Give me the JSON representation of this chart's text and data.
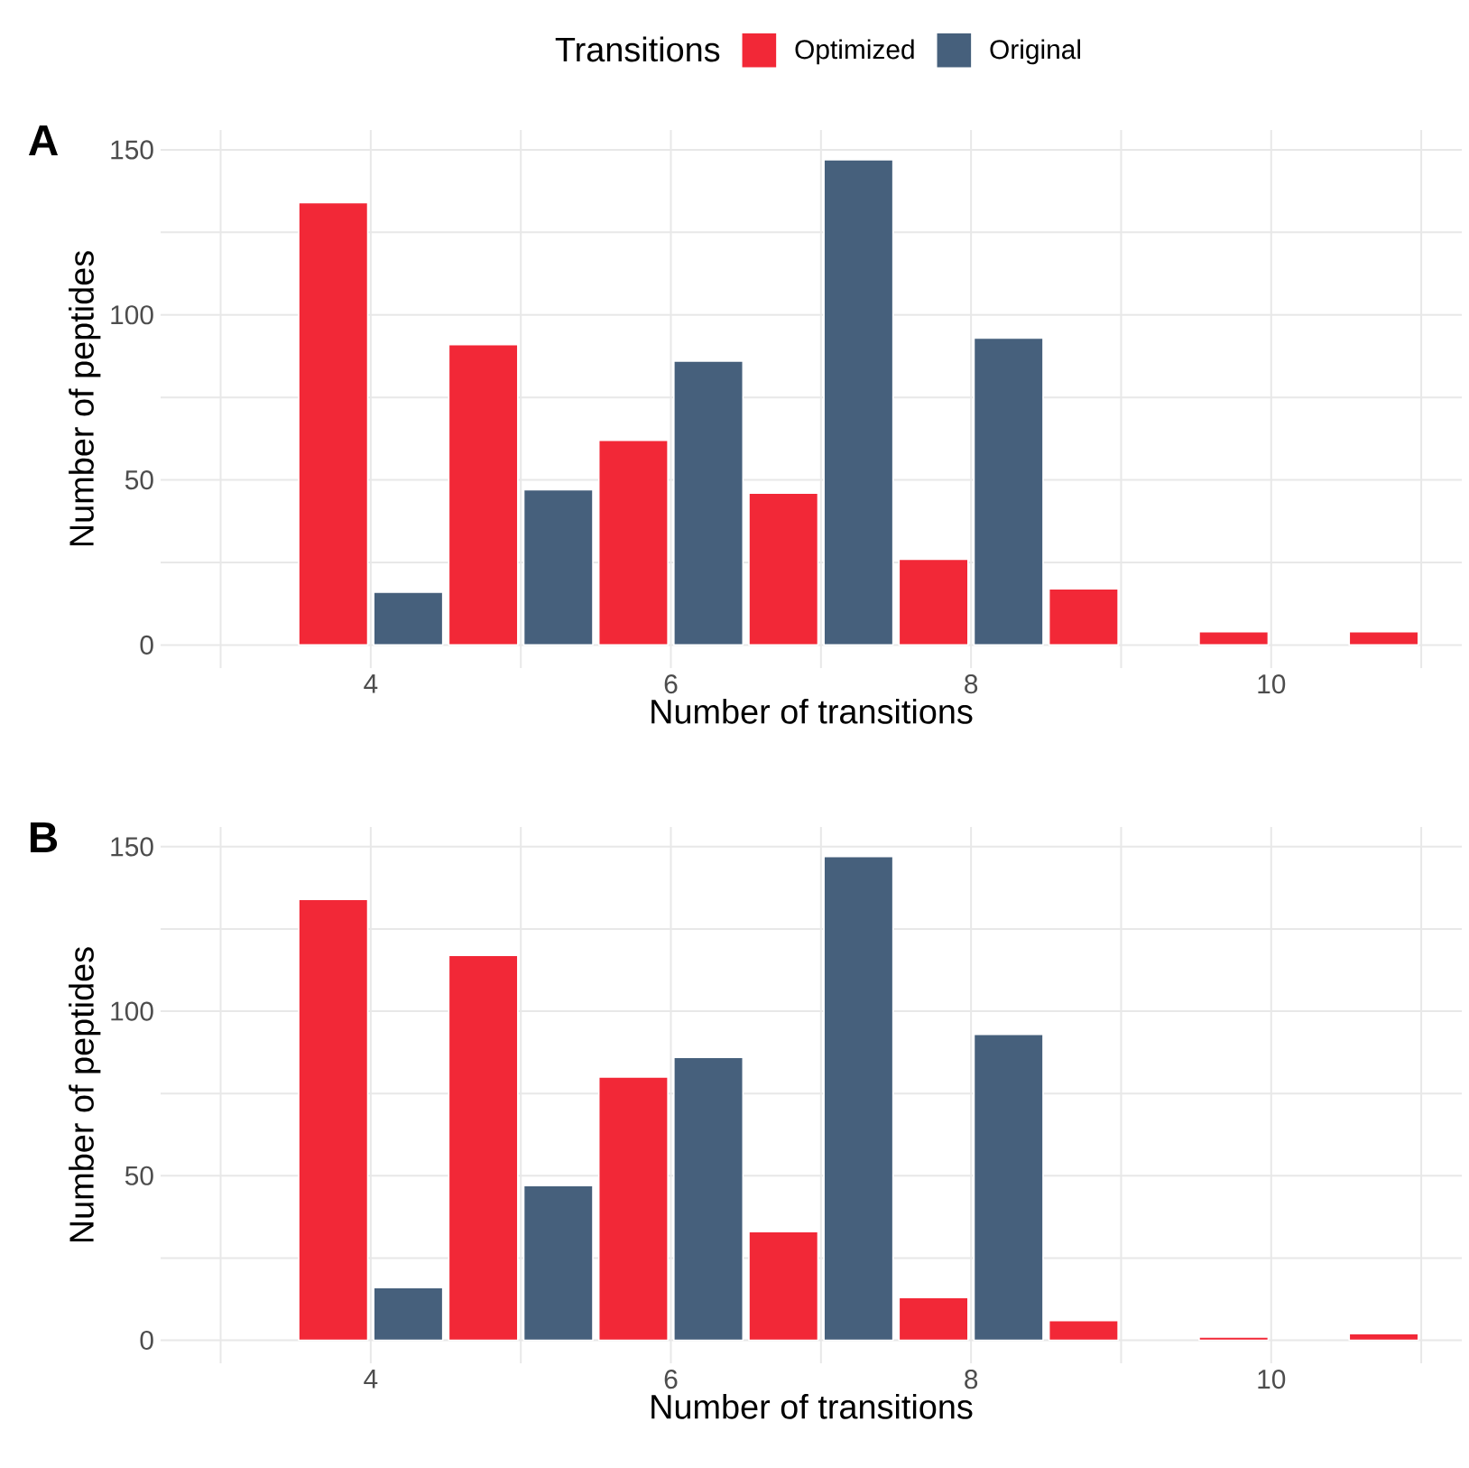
{
  "chart_data": [
    {
      "type": "bar",
      "title": "A",
      "xlabel": "Number of transitions",
      "ylabel": "Number of peptides",
      "legend_title": "Transitions",
      "legend": "top",
      "grid": true,
      "x": [
        4,
        5,
        6,
        7,
        8,
        9,
        10,
        11
      ],
      "series": [
        {
          "name": "Optimized",
          "color": "#f22837",
          "values": [
            134,
            91,
            62,
            46,
            26,
            17,
            4,
            4
          ]
        },
        {
          "name": "Original",
          "color": "#46607c",
          "values": [
            16,
            47,
            86,
            147,
            93,
            null,
            null,
            null
          ]
        }
      ],
      "xlim": [
        2.6,
        11.27
      ],
      "ylim": [
        -7,
        156
      ],
      "xticks": [
        {
          "value": 3,
          "label": null
        },
        4,
        {
          "value": 5,
          "label": null
        },
        6,
        {
          "value": 7,
          "label": null
        },
        8,
        {
          "value": 9,
          "label": null
        },
        10,
        {
          "value": 11,
          "label": null
        }
      ],
      "yticks": [
        0,
        {
          "value": 25,
          "label": null
        },
        50,
        {
          "value": 75,
          "label": null
        },
        100,
        {
          "value": 125,
          "label": null
        },
        150
      ]
    },
    {
      "type": "bar",
      "title": "B",
      "xlabel": "Number of transitions",
      "ylabel": "Number of peptides",
      "grid": true,
      "x": [
        4,
        5,
        6,
        7,
        8,
        9,
        10,
        11
      ],
      "series": [
        {
          "color": "#f22837",
          "values": [
            134,
            117,
            80,
            33,
            13,
            6,
            1,
            2
          ]
        },
        {
          "color": "#46607c",
          "values": [
            16,
            47,
            86,
            147,
            93,
            null,
            null,
            null
          ]
        }
      ],
      "xlim": [
        2.6,
        11.27
      ],
      "ylim": [
        -7,
        156
      ],
      "xticks": [
        {
          "value": 3,
          "label": null
        },
        4,
        {
          "value": 5,
          "label": null
        },
        6,
        {
          "value": 7,
          "label": null
        },
        8,
        {
          "value": 9,
          "label": null
        },
        10,
        {
          "value": 11,
          "label": null
        }
      ],
      "yticks": [
        0,
        {
          "value": 25,
          "label": null
        },
        50,
        {
          "value": 75,
          "label": null
        },
        100,
        {
          "value": 125,
          "label": null
        },
        150
      ]
    }
  ]
}
